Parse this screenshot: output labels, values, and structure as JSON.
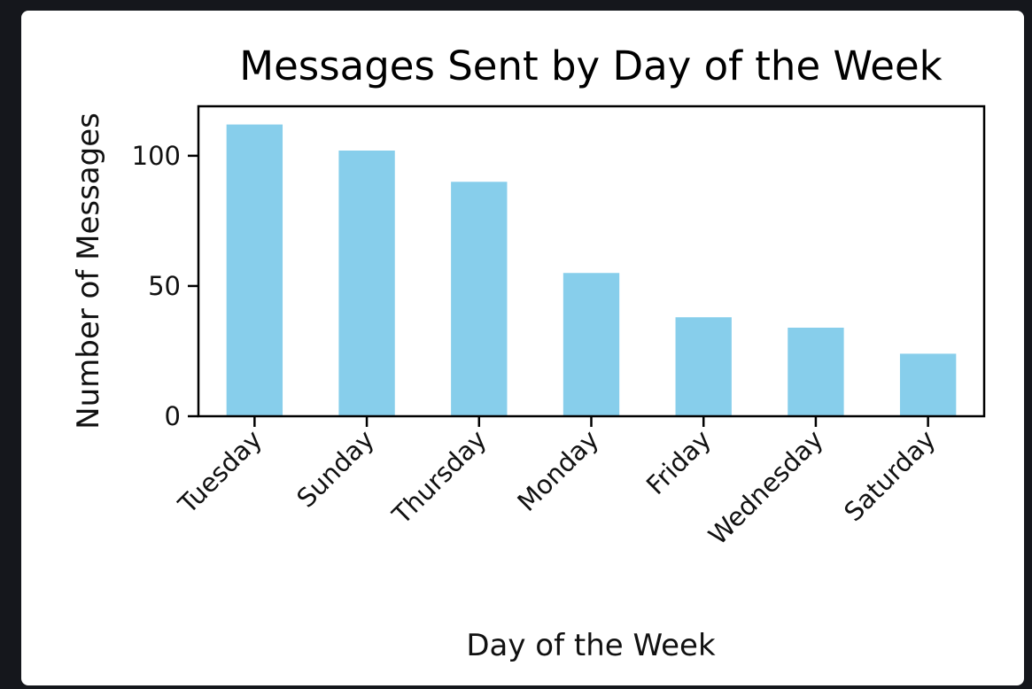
{
  "chart_data": {
    "type": "bar",
    "title": "Messages Sent by Day of the Week",
    "xlabel": "Day of the Week",
    "ylabel": "Number of Messages",
    "categories": [
      "Tuesday",
      "Sunday",
      "Thursday",
      "Monday",
      "Friday",
      "Wednesday",
      "Saturday"
    ],
    "values": [
      112,
      102,
      90,
      55,
      38,
      34,
      24
    ],
    "ylim": [
      0,
      119
    ],
    "yticks": [
      0,
      50,
      100
    ],
    "grid": false,
    "legend": "none",
    "bar_color": "#87ceeb"
  }
}
